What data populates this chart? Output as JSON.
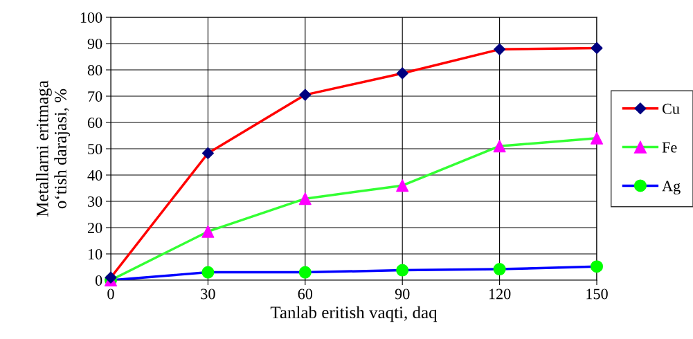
{
  "chart_data": {
    "type": "line",
    "xlabel": "Tanlab eritish vaqti, daq",
    "ylabel": "Metallarni eritmaga\no‘tish darajasi, %",
    "x": [
      0,
      30,
      60,
      90,
      120,
      150
    ],
    "series": [
      {
        "name": "Cu",
        "color": "#ff0000",
        "marker": "diamond",
        "colors": [
          "#000080",
          "#000080",
          "#000080",
          "#000080",
          "#000080",
          "#000080"
        ],
        "values": [
          1,
          48.3,
          70.5,
          78.7,
          87.8,
          88.3
        ]
      },
      {
        "name": "Fe",
        "color": "#33ff33",
        "marker": "triangle",
        "colors": [
          "#ff00ff",
          "#ff00ff",
          "#ff00ff",
          "#ff00ff",
          "#ff00ff",
          "#ff00ff"
        ],
        "values": [
          0,
          18.5,
          31,
          36,
          51,
          54
        ]
      },
      {
        "name": "Ag",
        "color": "#0000ff",
        "marker": "circle",
        "colors": [
          "#00ff00",
          "#00ff00",
          "#00ff00",
          "#00ff00",
          "#00ff00",
          "#00ff00"
        ],
        "values": [
          0,
          3,
          3,
          3.8,
          4.2,
          5.2
        ]
      }
    ],
    "xlim": [
      0,
      150
    ],
    "xticks": [
      0,
      30,
      60,
      90,
      120,
      150
    ],
    "ylim": [
      0,
      100
    ],
    "yticks": [
      0,
      10,
      20,
      30,
      40,
      50,
      60,
      70,
      80,
      90,
      100
    ],
    "grid": true,
    "legend": "right",
    "line_style": "solid"
  }
}
